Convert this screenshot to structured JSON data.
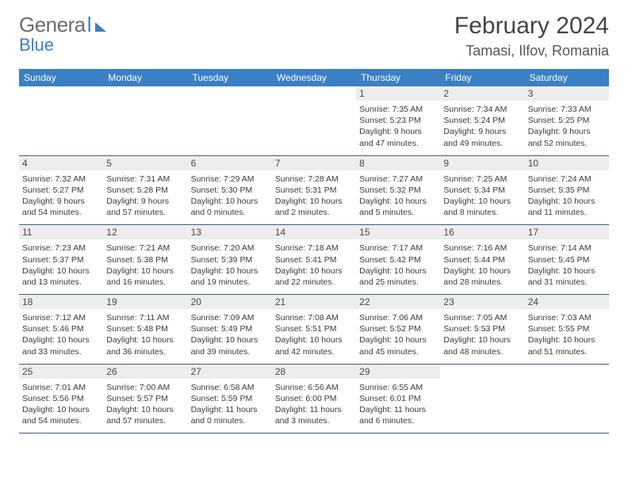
{
  "brand": {
    "general": "Genera",
    "l": "l",
    "blue": "Blue"
  },
  "title": {
    "month": "February 2024",
    "location": "Tamasi, Ilfov, Romania"
  },
  "colors": {
    "header_bg": "#3b7fc4",
    "header_text": "#ffffff",
    "daynum_bg": "#ededed",
    "body_text": "#3a3a3a",
    "rule": "#3b5f8a"
  },
  "dow": [
    "Sunday",
    "Monday",
    "Tuesday",
    "Wednesday",
    "Thursday",
    "Friday",
    "Saturday"
  ],
  "weeks": [
    [
      {
        "blank": true
      },
      {
        "blank": true
      },
      {
        "blank": true
      },
      {
        "blank": true
      },
      {
        "num": "1",
        "sunrise": "Sunrise: 7:35 AM",
        "sunset": "Sunset: 5:23 PM",
        "daylight": "Daylight: 9 hours and 47 minutes."
      },
      {
        "num": "2",
        "sunrise": "Sunrise: 7:34 AM",
        "sunset": "Sunset: 5:24 PM",
        "daylight": "Daylight: 9 hours and 49 minutes."
      },
      {
        "num": "3",
        "sunrise": "Sunrise: 7:33 AM",
        "sunset": "Sunset: 5:25 PM",
        "daylight": "Daylight: 9 hours and 52 minutes."
      }
    ],
    [
      {
        "num": "4",
        "sunrise": "Sunrise: 7:32 AM",
        "sunset": "Sunset: 5:27 PM",
        "daylight": "Daylight: 9 hours and 54 minutes."
      },
      {
        "num": "5",
        "sunrise": "Sunrise: 7:31 AM",
        "sunset": "Sunset: 5:28 PM",
        "daylight": "Daylight: 9 hours and 57 minutes."
      },
      {
        "num": "6",
        "sunrise": "Sunrise: 7:29 AM",
        "sunset": "Sunset: 5:30 PM",
        "daylight": "Daylight: 10 hours and 0 minutes."
      },
      {
        "num": "7",
        "sunrise": "Sunrise: 7:28 AM",
        "sunset": "Sunset: 5:31 PM",
        "daylight": "Daylight: 10 hours and 2 minutes."
      },
      {
        "num": "8",
        "sunrise": "Sunrise: 7:27 AM",
        "sunset": "Sunset: 5:32 PM",
        "daylight": "Daylight: 10 hours and 5 minutes."
      },
      {
        "num": "9",
        "sunrise": "Sunrise: 7:25 AM",
        "sunset": "Sunset: 5:34 PM",
        "daylight": "Daylight: 10 hours and 8 minutes."
      },
      {
        "num": "10",
        "sunrise": "Sunrise: 7:24 AM",
        "sunset": "Sunset: 5:35 PM",
        "daylight": "Daylight: 10 hours and 11 minutes."
      }
    ],
    [
      {
        "num": "11",
        "sunrise": "Sunrise: 7:23 AM",
        "sunset": "Sunset: 5:37 PM",
        "daylight": "Daylight: 10 hours and 13 minutes."
      },
      {
        "num": "12",
        "sunrise": "Sunrise: 7:21 AM",
        "sunset": "Sunset: 5:38 PM",
        "daylight": "Daylight: 10 hours and 16 minutes."
      },
      {
        "num": "13",
        "sunrise": "Sunrise: 7:20 AM",
        "sunset": "Sunset: 5:39 PM",
        "daylight": "Daylight: 10 hours and 19 minutes."
      },
      {
        "num": "14",
        "sunrise": "Sunrise: 7:18 AM",
        "sunset": "Sunset: 5:41 PM",
        "daylight": "Daylight: 10 hours and 22 minutes."
      },
      {
        "num": "15",
        "sunrise": "Sunrise: 7:17 AM",
        "sunset": "Sunset: 5:42 PM",
        "daylight": "Daylight: 10 hours and 25 minutes."
      },
      {
        "num": "16",
        "sunrise": "Sunrise: 7:16 AM",
        "sunset": "Sunset: 5:44 PM",
        "daylight": "Daylight: 10 hours and 28 minutes."
      },
      {
        "num": "17",
        "sunrise": "Sunrise: 7:14 AM",
        "sunset": "Sunset: 5:45 PM",
        "daylight": "Daylight: 10 hours and 31 minutes."
      }
    ],
    [
      {
        "num": "18",
        "sunrise": "Sunrise: 7:12 AM",
        "sunset": "Sunset: 5:46 PM",
        "daylight": "Daylight: 10 hours and 33 minutes."
      },
      {
        "num": "19",
        "sunrise": "Sunrise: 7:11 AM",
        "sunset": "Sunset: 5:48 PM",
        "daylight": "Daylight: 10 hours and 36 minutes."
      },
      {
        "num": "20",
        "sunrise": "Sunrise: 7:09 AM",
        "sunset": "Sunset: 5:49 PM",
        "daylight": "Daylight: 10 hours and 39 minutes."
      },
      {
        "num": "21",
        "sunrise": "Sunrise: 7:08 AM",
        "sunset": "Sunset: 5:51 PM",
        "daylight": "Daylight: 10 hours and 42 minutes."
      },
      {
        "num": "22",
        "sunrise": "Sunrise: 7:06 AM",
        "sunset": "Sunset: 5:52 PM",
        "daylight": "Daylight: 10 hours and 45 minutes."
      },
      {
        "num": "23",
        "sunrise": "Sunrise: 7:05 AM",
        "sunset": "Sunset: 5:53 PM",
        "daylight": "Daylight: 10 hours and 48 minutes."
      },
      {
        "num": "24",
        "sunrise": "Sunrise: 7:03 AM",
        "sunset": "Sunset: 5:55 PM",
        "daylight": "Daylight: 10 hours and 51 minutes."
      }
    ],
    [
      {
        "num": "25",
        "sunrise": "Sunrise: 7:01 AM",
        "sunset": "Sunset: 5:56 PM",
        "daylight": "Daylight: 10 hours and 54 minutes."
      },
      {
        "num": "26",
        "sunrise": "Sunrise: 7:00 AM",
        "sunset": "Sunset: 5:57 PM",
        "daylight": "Daylight: 10 hours and 57 minutes."
      },
      {
        "num": "27",
        "sunrise": "Sunrise: 6:58 AM",
        "sunset": "Sunset: 5:59 PM",
        "daylight": "Daylight: 11 hours and 0 minutes."
      },
      {
        "num": "28",
        "sunrise": "Sunrise: 6:56 AM",
        "sunset": "Sunset: 6:00 PM",
        "daylight": "Daylight: 11 hours and 3 minutes."
      },
      {
        "num": "29",
        "sunrise": "Sunrise: 6:55 AM",
        "sunset": "Sunset: 6:01 PM",
        "daylight": "Daylight: 11 hours and 6 minutes."
      },
      {
        "blank": true
      },
      {
        "blank": true
      }
    ]
  ]
}
